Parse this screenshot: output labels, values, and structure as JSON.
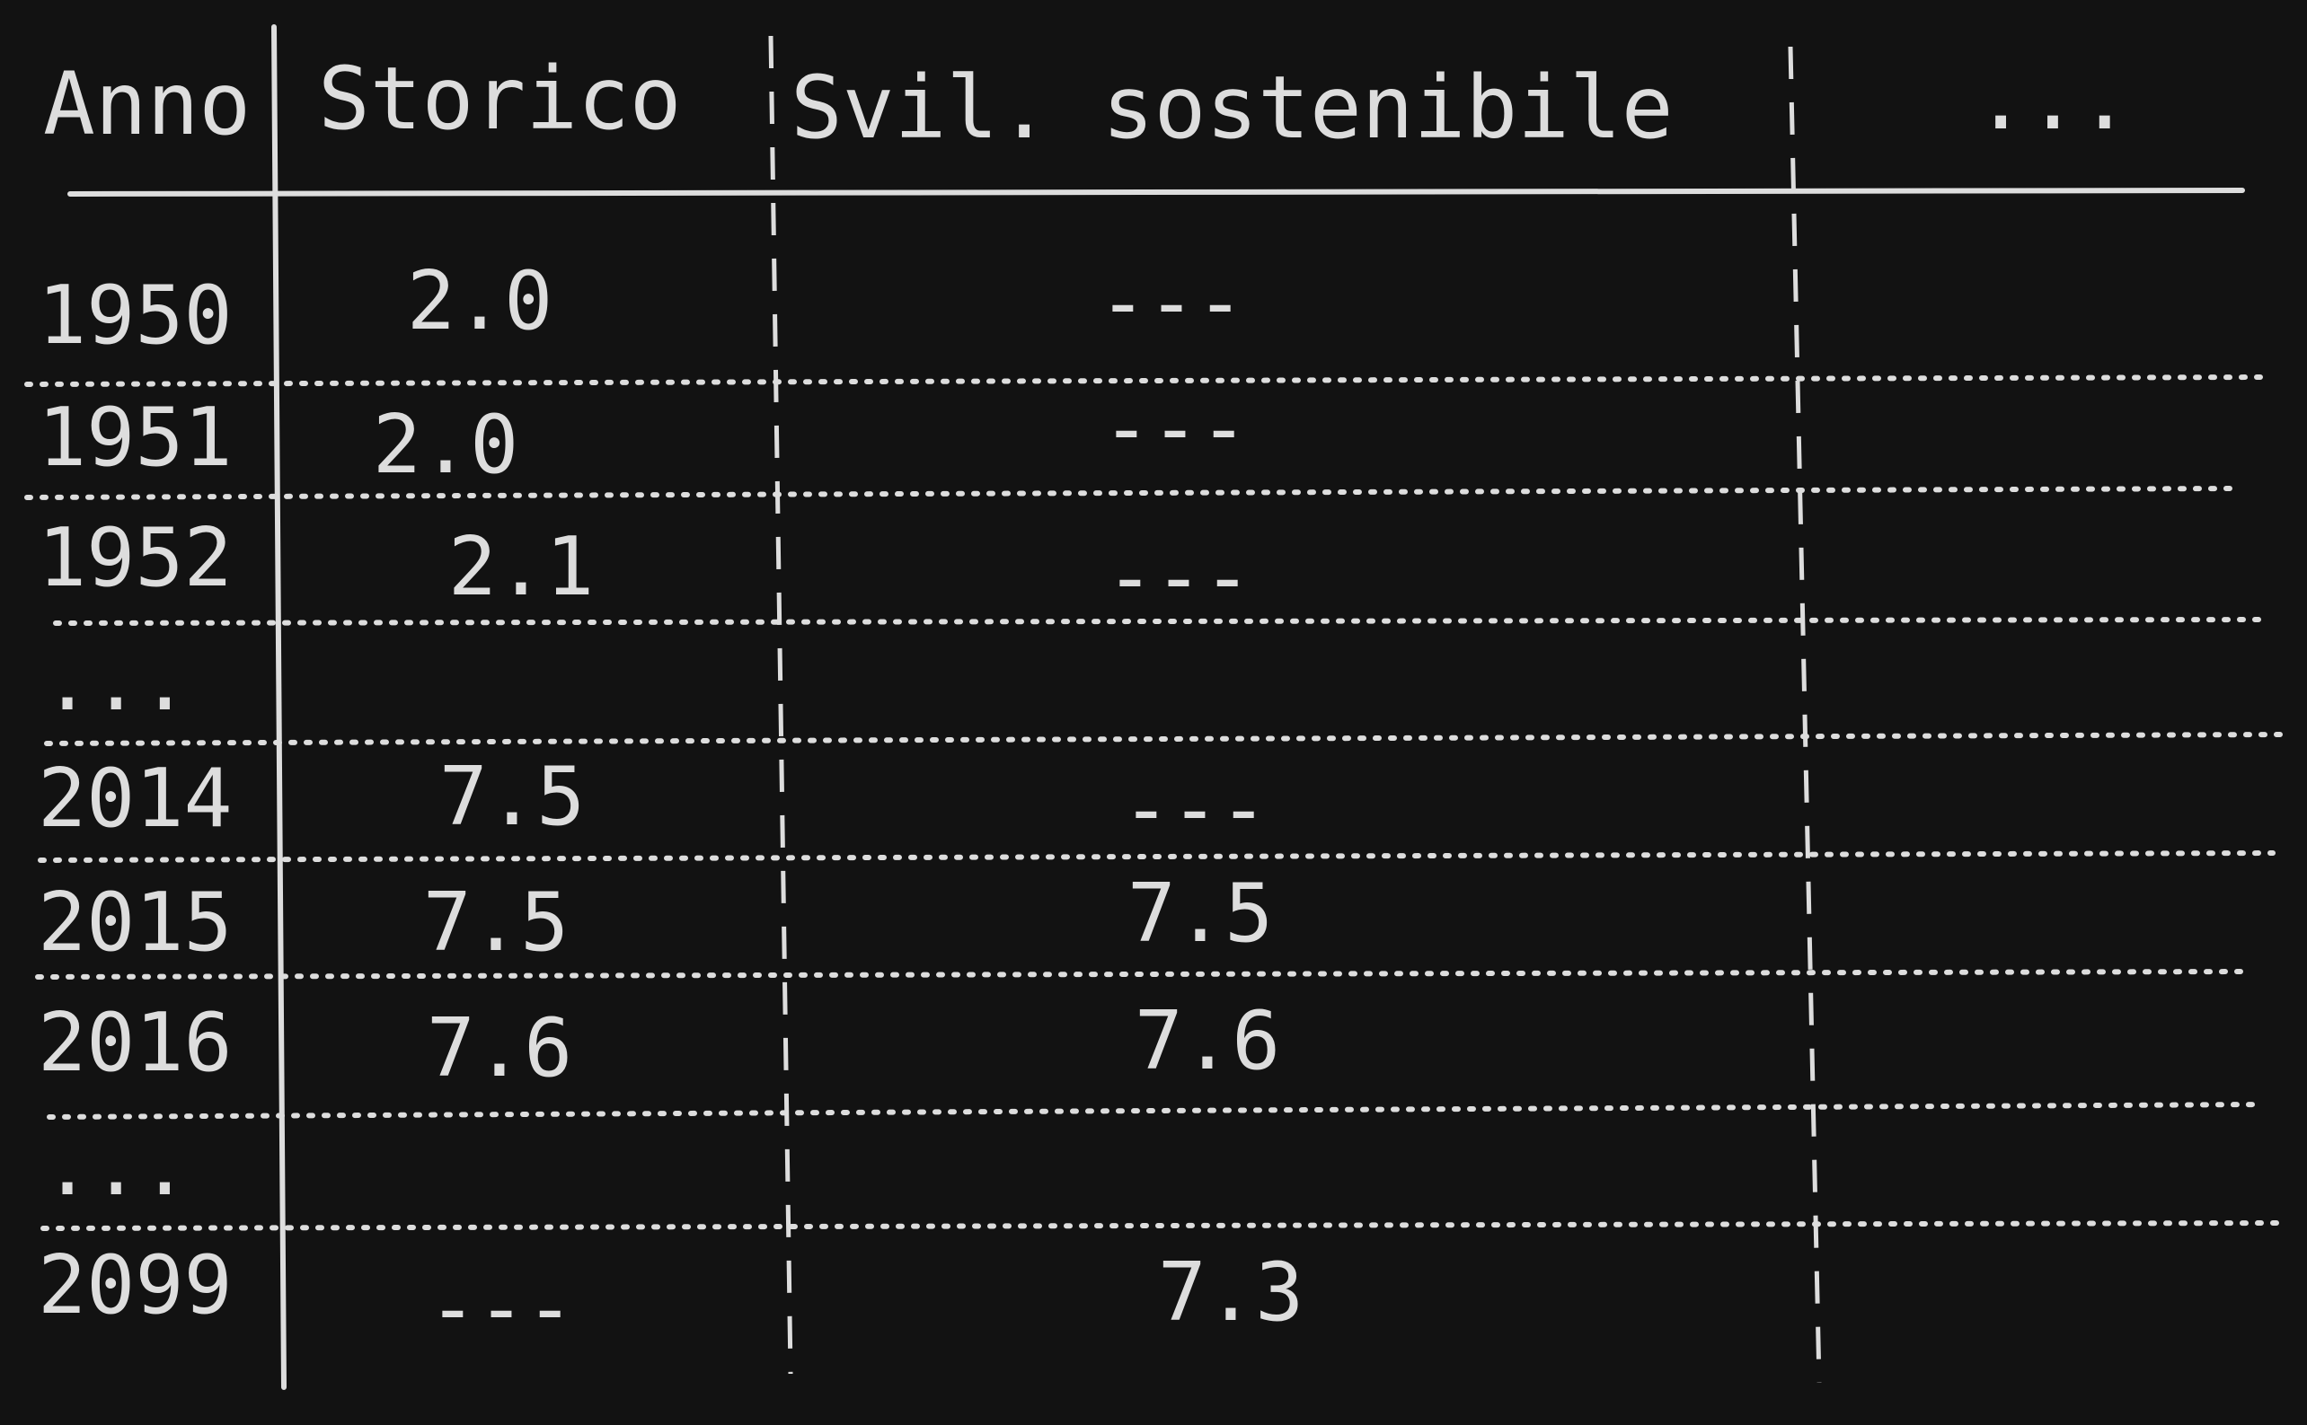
{
  "table": {
    "headers": [
      "Anno",
      "Storico",
      "Svil. sostenibile",
      "..."
    ],
    "rows": [
      {
        "anno": "1950",
        "storico": "2.0",
        "sostenibile": "---"
      },
      {
        "anno": "1951",
        "storico": "2.0",
        "sostenibile": "---"
      },
      {
        "anno": "1952",
        "storico": "2.1",
        "sostenibile": "---"
      },
      {
        "anno": "...",
        "storico": "",
        "sostenibile": ""
      },
      {
        "anno": "2014",
        "storico": "7.5",
        "sostenibile": "---"
      },
      {
        "anno": "2015",
        "storico": "7.5",
        "sostenibile": "7.5"
      },
      {
        "anno": "2016",
        "storico": "7.6",
        "sostenibile": "7.6"
      },
      {
        "anno": "...",
        "storico": "",
        "sostenibile": ""
      },
      {
        "anno": "2099",
        "storico": "---",
        "sostenibile": "7.3"
      }
    ]
  },
  "colors": {
    "background": "#121212",
    "ink": "#dddddd"
  }
}
